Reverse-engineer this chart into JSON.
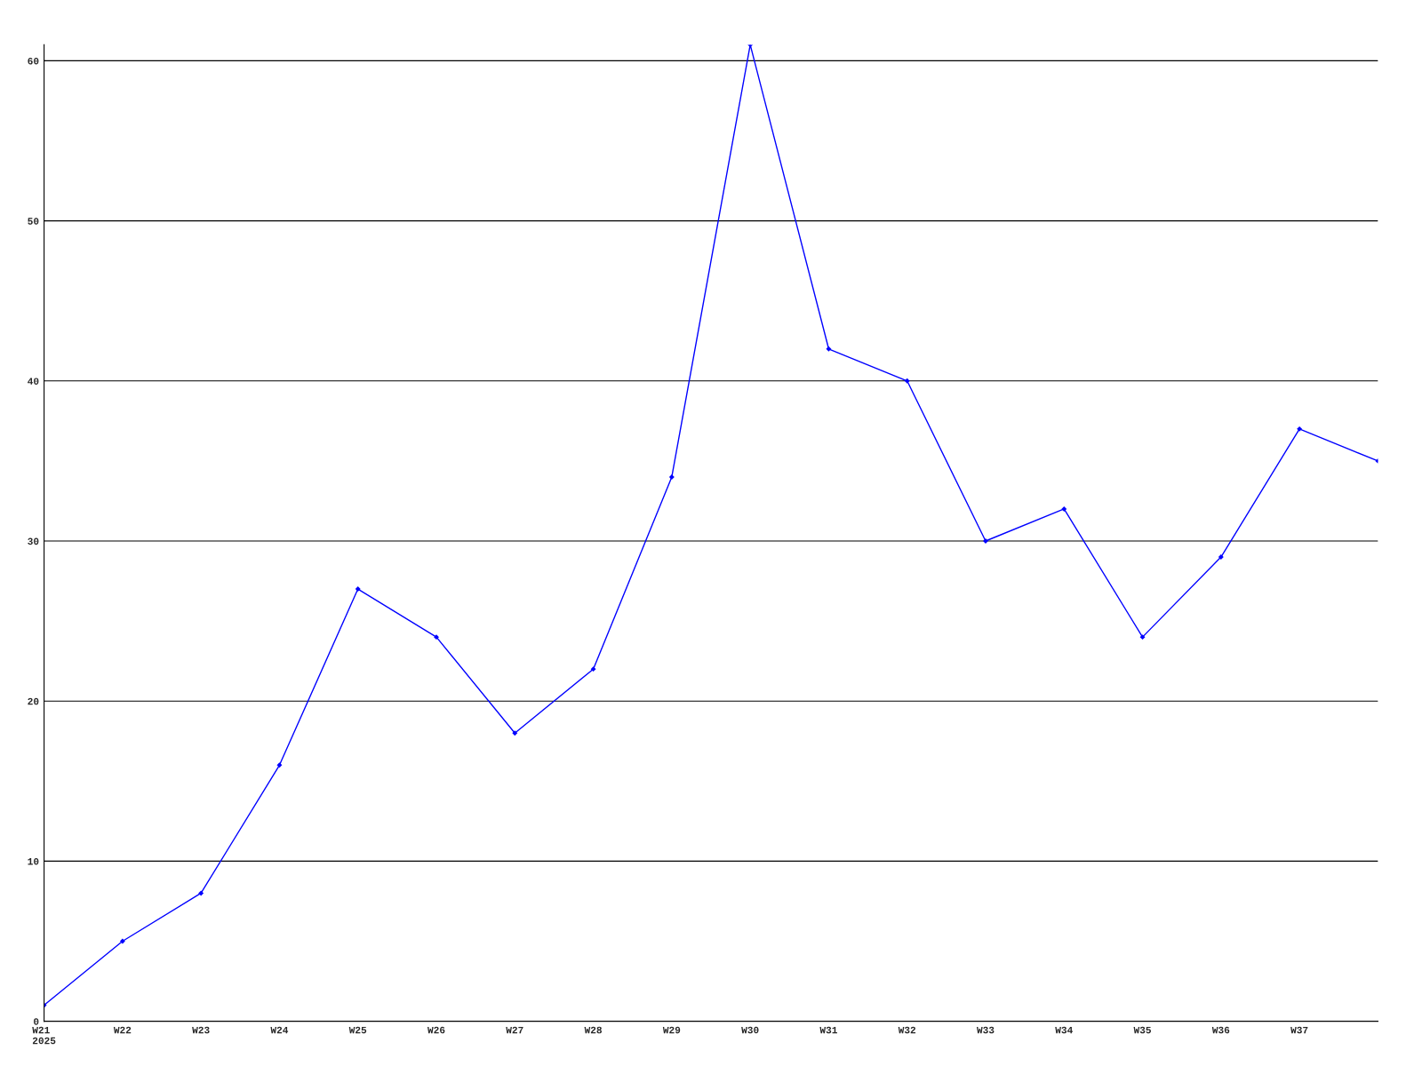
{
  "chart_data": {
    "type": "line",
    "categories": [
      "W21\n2025",
      "W22",
      "W23",
      "W24",
      "W25",
      "W26",
      "W27",
      "W28",
      "W29",
      "W30",
      "W31",
      "W32",
      "W33",
      "W34",
      "W35",
      "W36",
      "W37",
      null
    ],
    "series": [
      {
        "color": "#0000ff",
        "values": [
          1,
          5,
          8,
          16,
          27,
          24,
          18,
          22,
          34,
          61,
          42,
          40,
          30,
          32,
          24,
          29,
          37,
          35
        ]
      }
    ],
    "ylim": [
      0,
      61
    ],
    "yticks": [
      0,
      10,
      20,
      30,
      40,
      50,
      60
    ],
    "grid": "y",
    "marker": "diamond",
    "line_style": "solid",
    "legend": false
  }
}
